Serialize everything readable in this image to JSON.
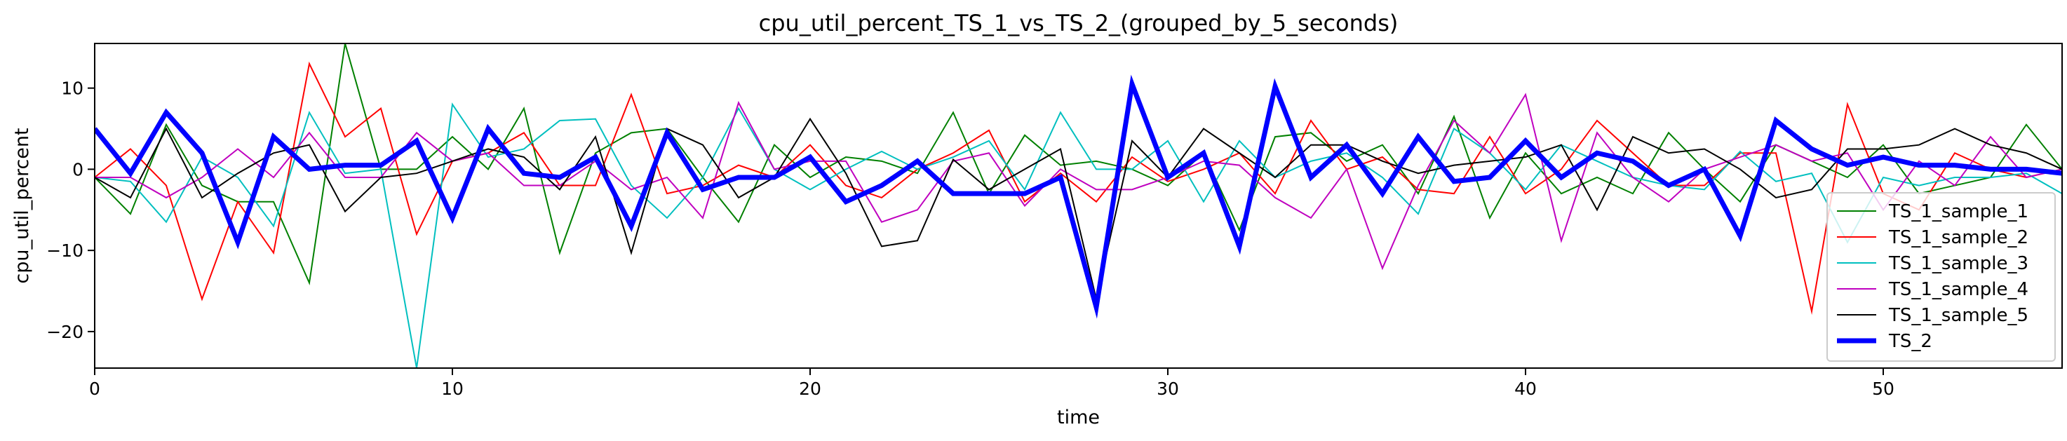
{
  "chart_data": {
    "type": "line",
    "title": "cpu_util_percent_TS_1_vs_TS_2_(grouped_by_5_seconds)",
    "xlabel": "time",
    "ylabel": "cpu_util_percent",
    "xlim": [
      0,
      55
    ],
    "ylim": [
      -24.5,
      15.5
    ],
    "xticks": [
      0,
      10,
      20,
      30,
      40,
      50
    ],
    "yticks": [
      -20,
      -10,
      0,
      10
    ],
    "ytick_labels": [
      "−20",
      "−10",
      "0",
      "10"
    ],
    "grid": false,
    "legend_position": "lower-right",
    "x": [
      0,
      1,
      2,
      3,
      4,
      5,
      6,
      7,
      8,
      9,
      10,
      11,
      12,
      13,
      14,
      15,
      16,
      17,
      18,
      19,
      20,
      21,
      22,
      23,
      24,
      25,
      26,
      27,
      28,
      29,
      30,
      31,
      32,
      33,
      34,
      35,
      36,
      37,
      38,
      39,
      40,
      41,
      42,
      43,
      44,
      45,
      46,
      47,
      48,
      49,
      50,
      51,
      52,
      53,
      54,
      55
    ],
    "series": [
      {
        "name": "TS_1_sample_1",
        "color": "#008000",
        "width": 2,
        "values": [
          -1,
          -5.5,
          5.5,
          -2,
          -4,
          -4,
          -14,
          15.5,
          0,
          0,
          4,
          0,
          7.5,
          -10.3,
          2,
          4.5,
          5,
          -1,
          -6.5,
          3,
          -1,
          1.5,
          1,
          -0.5,
          7,
          -3,
          4.2,
          0.5,
          1,
          0,
          -2,
          2,
          -7.5,
          4,
          4.5,
          1,
          3,
          -3,
          6.5,
          -6,
          2,
          -3,
          -1,
          -3,
          4.5,
          0,
          -4,
          3,
          1,
          -1,
          3,
          -3,
          -2,
          -1,
          5.5,
          0
        ]
      },
      {
        "name": "TS_1_sample_2",
        "color": "#ff0000",
        "width": 2,
        "values": [
          -1,
          2.5,
          -2,
          -16,
          -4,
          -10.3,
          13,
          4,
          7.5,
          -8,
          1,
          2,
          4.5,
          -2,
          -2,
          9.2,
          -3,
          -2,
          0.5,
          -1,
          3,
          -2,
          -3.5,
          0,
          2,
          4.8,
          -4,
          -0.5,
          -4,
          1.5,
          -1.5,
          0,
          2,
          -3,
          6,
          0,
          1.5,
          -2.5,
          -3,
          4,
          -3,
          0,
          6,
          2,
          -2,
          -2,
          2,
          2,
          -17.5,
          8,
          -3,
          -5,
          2,
          0,
          -1,
          0
        ]
      },
      {
        "name": "TS_1_sample_3",
        "color": "#00bfbf",
        "width": 2,
        "values": [
          -1,
          -1.5,
          -6.5,
          1.5,
          -1,
          -7,
          7,
          -0.5,
          0,
          -24.5,
          8,
          1.5,
          2.5,
          6,
          6.2,
          -2,
          -6,
          -1,
          7.5,
          0,
          -2.5,
          0,
          2.2,
          0,
          1.5,
          3.5,
          -2.5,
          7,
          0,
          0,
          3.5,
          -4,
          3.5,
          -1,
          1,
          2,
          -1,
          -5.5,
          5,
          2,
          -2.5,
          3,
          1,
          -1,
          -2,
          -2.5,
          2.2,
          -1.5,
          -0.5,
          -9,
          -1,
          -2,
          -1,
          -1,
          -0.5,
          -3
        ]
      },
      {
        "name": "TS_1_sample_4",
        "color": "#bf00bf",
        "width": 2,
        "values": [
          -1,
          -1,
          -3.5,
          -1,
          2.5,
          -1,
          4.5,
          -1,
          -1,
          4.5,
          1,
          2,
          -2,
          -2,
          1,
          -2.5,
          -1,
          -6,
          8.2,
          0,
          1,
          1,
          -6.5,
          -5,
          1,
          2,
          -4.5,
          0,
          -2.5,
          -2.5,
          -1,
          1,
          0.5,
          -3.5,
          -6,
          0,
          -12.2,
          -2,
          6,
          2,
          9.2,
          -8.8,
          4.5,
          -1,
          -4,
          0,
          1.5,
          3,
          1,
          2,
          -5,
          1,
          -2,
          4,
          -1,
          0
        ]
      },
      {
        "name": "TS_1_sample_5",
        "color": "#000000",
        "width": 2,
        "values": [
          -1,
          -3.5,
          5,
          -3.5,
          -0.5,
          2,
          3,
          -5.2,
          -1,
          -0.5,
          1,
          2.5,
          1.5,
          -2.5,
          4,
          -10.3,
          5,
          3,
          -3.5,
          -1,
          6.2,
          -0.5,
          -9.5,
          -8.8,
          1.2,
          -2.5,
          0,
          2.5,
          -16,
          3.5,
          -1,
          5,
          2,
          -1,
          3,
          3,
          1,
          -0.5,
          0.5,
          1,
          1.5,
          3,
          -5,
          4,
          2,
          2.5,
          0,
          -3.5,
          -2.5,
          2.5,
          2.5,
          3,
          5,
          3,
          2,
          0
        ]
      },
      {
        "name": "TS_2",
        "color": "#0000ff",
        "width": 7,
        "values": [
          5,
          -0.5,
          7,
          2,
          -9,
          4,
          0,
          0.5,
          0.5,
          3.5,
          -6,
          5,
          -0.5,
          -1,
          1.5,
          -7,
          4.5,
          -2.5,
          -1,
          -1,
          1.5,
          -4,
          -2,
          1,
          -3,
          -3,
          -3,
          -1,
          -17,
          10.5,
          -1,
          2,
          -9.5,
          10.2,
          -1,
          3,
          -3,
          4,
          -1.5,
          -1,
          3.5,
          -1,
          2,
          1,
          -2,
          0,
          -8.2,
          6,
          2.5,
          0.5,
          1.5,
          0.5,
          0.5,
          0,
          0,
          -0.5
        ]
      }
    ]
  }
}
